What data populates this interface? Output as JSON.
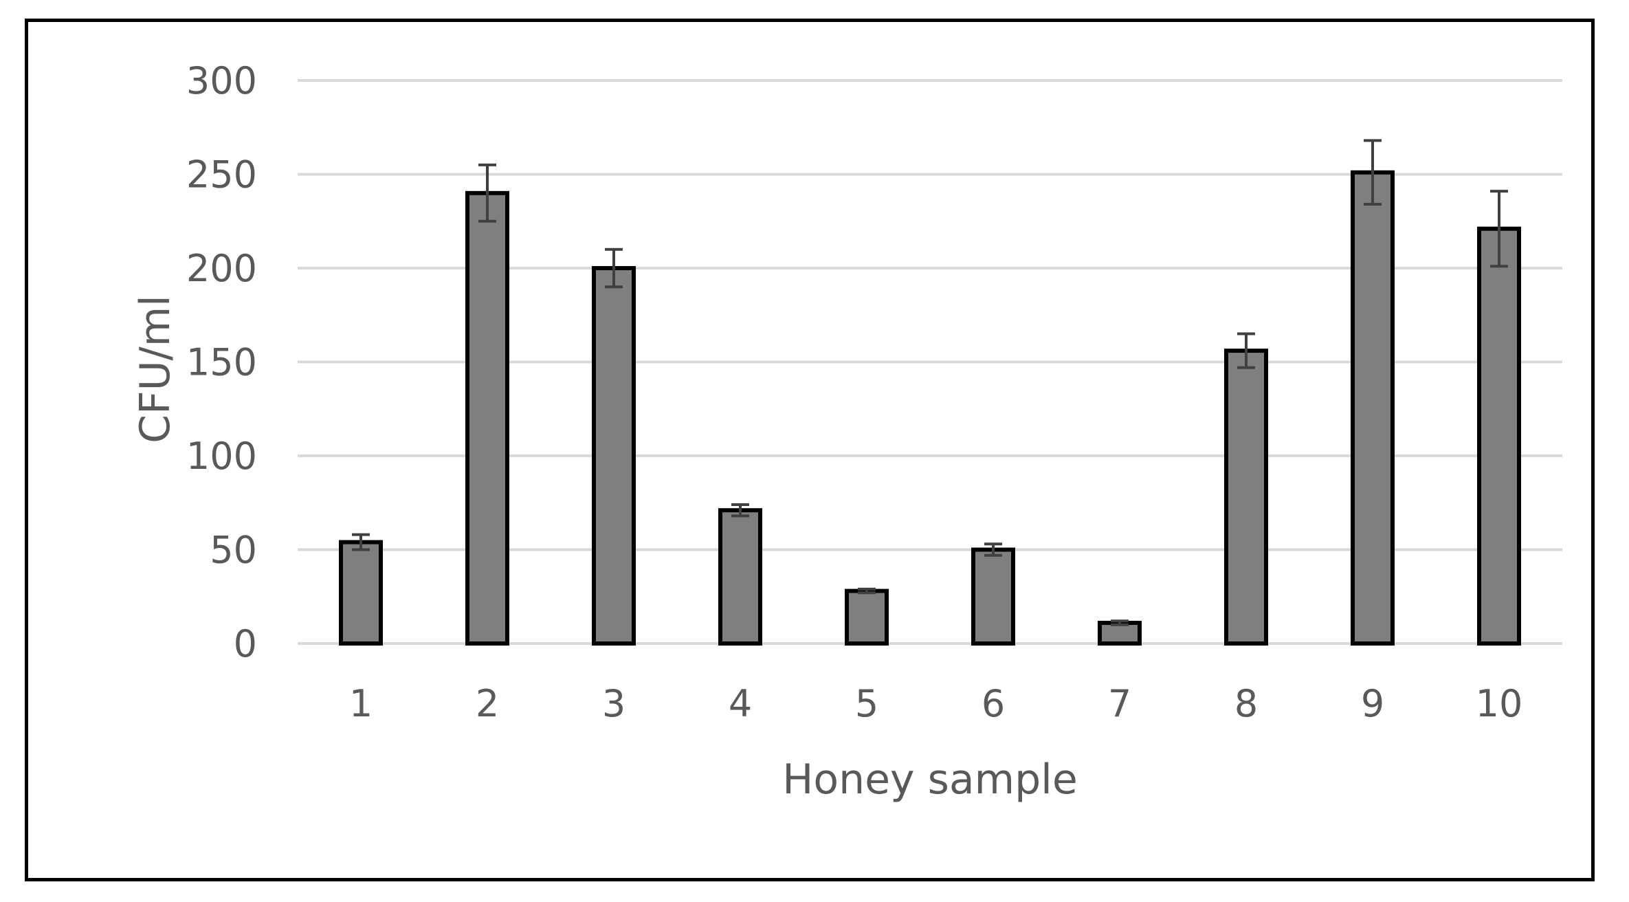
{
  "chart_data": {
    "type": "bar",
    "title": "",
    "xlabel": "Honey sample",
    "ylabel": "CFU/ml",
    "categories": [
      "1",
      "2",
      "3",
      "4",
      "5",
      "6",
      "7",
      "8",
      "9",
      "10"
    ],
    "values": [
      54,
      240,
      200,
      71,
      28,
      50,
      11,
      156,
      251,
      221
    ],
    "error": [
      4,
      15,
      10,
      3,
      1,
      3,
      1,
      9,
      17,
      20
    ],
    "ylim": [
      0,
      300
    ],
    "yticks": [
      "0",
      "50",
      "100",
      "150",
      "200",
      "250",
      "300"
    ],
    "ytick_values": [
      0,
      50,
      100,
      150,
      200,
      250,
      300
    ],
    "grid": true,
    "legend": "none",
    "colors": {
      "bar_fill": "#7f7f7f",
      "bar_edge": "#000000",
      "grid": "#d9d9d9",
      "text": "#595959",
      "error_bar": "#404040"
    }
  }
}
